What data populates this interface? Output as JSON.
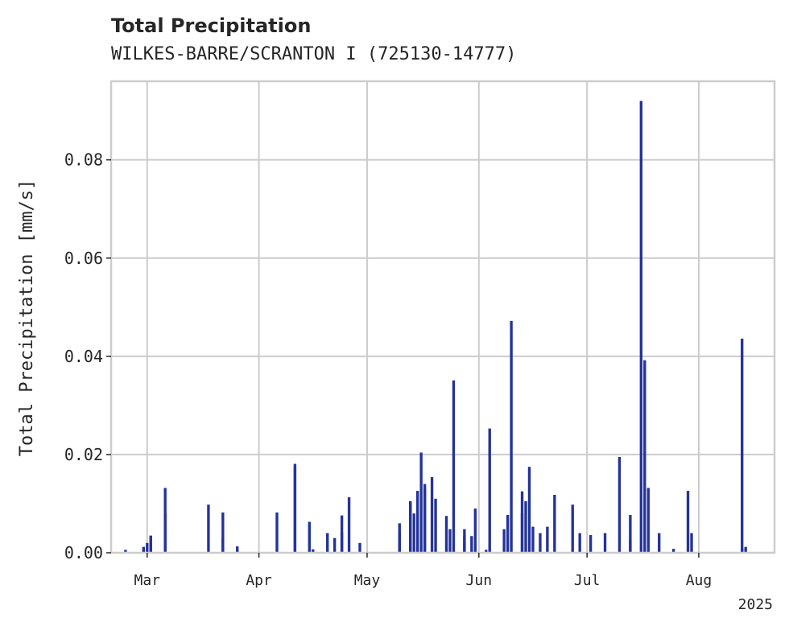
{
  "chart_data": {
    "type": "bar",
    "title": "Total Precipitation",
    "subtitle": "WILKES-BARRE/SCRANTON I (725130-14777)",
    "ylabel": "Total Precipitation [mm/s]",
    "xlabel": "",
    "x_offset_label": "2025",
    "ylim": [
      0,
      0.096
    ],
    "xlim": [
      "2025-02-19",
      "2025-08-22"
    ],
    "yticks": [
      0.0,
      0.02,
      0.04,
      0.06,
      0.08
    ],
    "ytick_labels": [
      "0.00",
      "0.02",
      "0.04",
      "0.06",
      "0.08"
    ],
    "xticks": [
      "2025-03-01",
      "2025-04-01",
      "2025-05-01",
      "2025-06-01",
      "2025-07-01",
      "2025-08-01"
    ],
    "xtick_labels": [
      "Mar",
      "Apr",
      "May",
      "Jun",
      "Jul",
      "Aug"
    ],
    "grid": true,
    "bar_color": "#24339a",
    "series": [
      {
        "x": [
          "2025-02-23",
          "2025-02-28",
          "2025-03-01",
          "2025-03-02",
          "2025-03-02",
          "2025-03-06",
          "2025-03-06",
          "2025-03-18",
          "2025-03-22",
          "2025-03-22",
          "2025-03-26",
          "2025-04-06",
          "2025-04-11",
          "2025-04-11",
          "2025-04-15",
          "2025-04-16",
          "2025-04-20",
          "2025-04-22",
          "2025-04-24",
          "2025-04-24",
          "2025-04-26",
          "2025-04-29",
          "2025-05-10",
          "2025-05-10",
          "2025-05-13",
          "2025-05-13",
          "2025-05-14",
          "2025-05-15",
          "2025-05-16",
          "2025-05-17",
          "2025-05-17",
          "2025-05-19",
          "2025-05-20",
          "2025-05-23",
          "2025-05-24",
          "2025-05-25",
          "2025-05-28",
          "2025-05-28",
          "2025-05-30",
          "2025-05-31",
          "2025-06-03",
          "2025-06-04",
          "2025-06-08",
          "2025-06-09",
          "2025-06-10",
          "2025-06-13",
          "2025-06-13",
          "2025-06-14",
          "2025-06-15",
          "2025-06-16",
          "2025-06-18",
          "2025-06-20",
          "2025-06-22",
          "2025-06-27",
          "2025-06-29",
          "2025-07-02",
          "2025-07-06",
          "2025-07-10",
          "2025-07-13",
          "2025-07-13",
          "2025-07-16",
          "2025-07-17",
          "2025-07-18",
          "2025-07-21",
          "2025-07-25",
          "2025-07-29",
          "2025-07-30",
          "2025-08-13",
          "2025-08-13",
          "2025-08-14"
        ],
        "values": [
          0.0006,
          0.0012,
          0.002,
          0.0034,
          0.0035,
          0.0132,
          0.008,
          0.0098,
          0.0082,
          0.003,
          0.0013,
          0.0082,
          0.0176,
          0.0181,
          0.0063,
          0.0007,
          0.004,
          0.003,
          0.0076,
          0.0041,
          0.0113,
          0.002,
          0.006,
          0.004,
          0.0105,
          0.0105,
          0.008,
          0.0126,
          0.0204,
          0.014,
          0.013,
          0.0154,
          0.011,
          0.0075,
          0.0048,
          0.0351,
          0.0048,
          0.0034,
          0.0034,
          0.009,
          0.0006,
          0.0253,
          0.0048,
          0.0077,
          0.0472,
          0.0125,
          0.0081,
          0.0105,
          0.0175,
          0.0053,
          0.004,
          0.0053,
          0.0118,
          0.0098,
          0.004,
          0.0036,
          0.004,
          0.0195,
          0.0077,
          0.0025,
          0.092,
          0.0392,
          0.0132,
          0.004,
          0.0008,
          0.0126,
          0.004,
          0.0436,
          0.001,
          0.0012
        ]
      }
    ]
  }
}
